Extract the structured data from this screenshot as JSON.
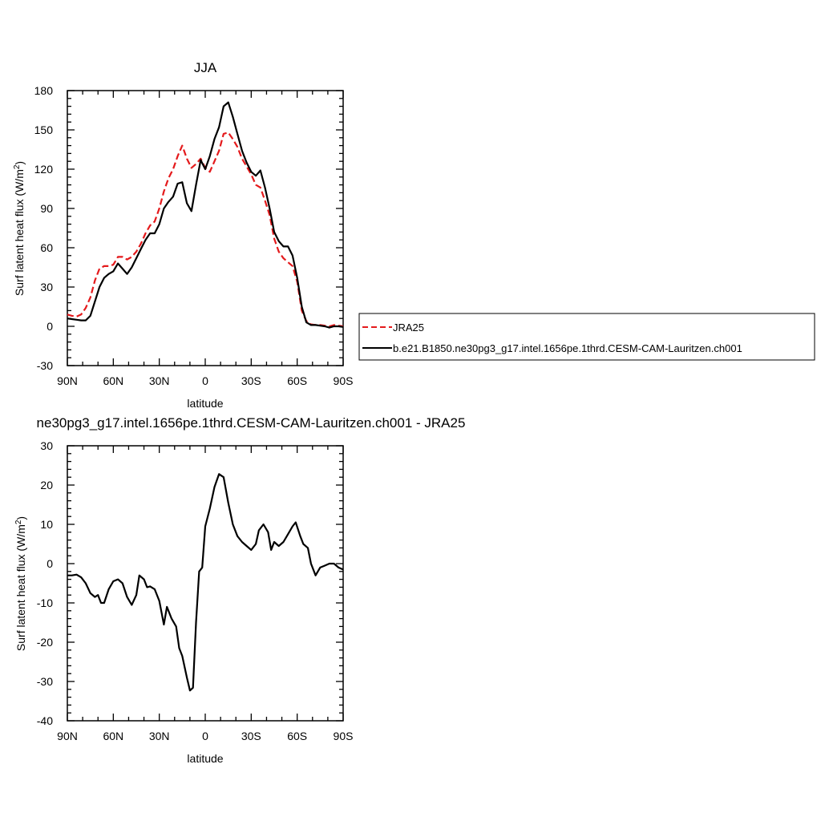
{
  "chart_data": [
    {
      "type": "line",
      "title": "JJA",
      "xlabel": "latitude",
      "ylabel": "Surf latent heat flux (W/m",
      "ylabel_sup": "2",
      "ylabel_end": ")",
      "xlim": [
        90,
        -90
      ],
      "ylim": [
        -30,
        180
      ],
      "xticks": [
        90,
        60,
        30,
        0,
        -30,
        -60,
        -90
      ],
      "xtick_labels": [
        "90N",
        "60N",
        "30N",
        "0",
        "30S",
        "60S",
        "90S"
      ],
      "yticks": [
        -30,
        0,
        30,
        60,
        90,
        120,
        150,
        180
      ],
      "ytick_labels": [
        "-30",
        "0",
        "30",
        "60",
        "90",
        "120",
        "150",
        "180"
      ],
      "legend_position": "right",
      "series": [
        {
          "name": "JRA25",
          "color": "#e41a1c",
          "dash": "dashed",
          "points": [
            [
              90,
              9
            ],
            [
              87,
              8
            ],
            [
              84,
              7.5
            ],
            [
              81,
              9
            ],
            [
              78,
              14
            ],
            [
              75,
              22
            ],
            [
              72,
              35
            ],
            [
              69,
              44
            ],
            [
              66,
              46
            ],
            [
              63,
              46
            ],
            [
              60,
              47
            ],
            [
              57,
              53
            ],
            [
              54,
              53
            ],
            [
              51,
              51
            ],
            [
              48,
              53
            ],
            [
              45,
              57
            ],
            [
              42,
              63
            ],
            [
              39,
              71
            ],
            [
              36,
              77
            ],
            [
              33,
              80
            ],
            [
              30,
              90
            ],
            [
              27,
              103
            ],
            [
              24,
              113
            ],
            [
              21,
              120
            ],
            [
              18,
              130
            ],
            [
              15,
              138
            ],
            [
              12,
              128
            ],
            [
              9,
              121
            ],
            [
              6,
              124
            ],
            [
              3,
              128
            ],
            [
              0,
              121
            ],
            [
              -3,
              118
            ],
            [
              -6,
              126
            ],
            [
              -9,
              134
            ],
            [
              -12,
              147
            ],
            [
              -15,
              148
            ],
            [
              -18,
              143
            ],
            [
              -21,
              137
            ],
            [
              -24,
              128
            ],
            [
              -27,
              122
            ],
            [
              -30,
              116
            ],
            [
              -33,
              108
            ],
            [
              -36,
              106
            ],
            [
              -39,
              96
            ],
            [
              -42,
              85
            ],
            [
              -45,
              67
            ],
            [
              -48,
              57
            ],
            [
              -51,
              52
            ],
            [
              -54,
              49
            ],
            [
              -57,
              46
            ],
            [
              -60,
              34
            ],
            [
              -63,
              12
            ],
            [
              -66,
              4
            ],
            [
              -69,
              1.5
            ],
            [
              -72,
              1
            ],
            [
              -75,
              1
            ],
            [
              -78,
              0.5
            ],
            [
              -81,
              0
            ],
            [
              -84,
              1
            ],
            [
              -87,
              0.5
            ],
            [
              -90,
              0
            ]
          ]
        },
        {
          "name": "b.e21.B1850.ne30pg3_g17.intel.1656pe.1thrd.CESM-CAM-Lauritzen.ch001",
          "color": "#000000",
          "dash": "solid",
          "points": [
            [
              90,
              6
            ],
            [
              87,
              5.5
            ],
            [
              84,
              5
            ],
            [
              81,
              4.5
            ],
            [
              78,
              4.5
            ],
            [
              75,
              8
            ],
            [
              72,
              19
            ],
            [
              69,
              30
            ],
            [
              66,
              37
            ],
            [
              63,
              40
            ],
            [
              60,
              42
            ],
            [
              57,
              48
            ],
            [
              54,
              44
            ],
            [
              51,
              40
            ],
            [
              48,
              45
            ],
            [
              45,
              52
            ],
            [
              42,
              59
            ],
            [
              39,
              66
            ],
            [
              36,
              71
            ],
            [
              33,
              71
            ],
            [
              30,
              78
            ],
            [
              27,
              90
            ],
            [
              24,
              95
            ],
            [
              21,
              99
            ],
            [
              18,
              109
            ],
            [
              15,
              110
            ],
            [
              12,
              94
            ],
            [
              9,
              88
            ],
            [
              6,
              108
            ],
            [
              3,
              127
            ],
            [
              0,
              120
            ],
            [
              -3,
              130
            ],
            [
              -6,
              143
            ],
            [
              -9,
              152
            ],
            [
              -12,
              168
            ],
            [
              -15,
              171
            ],
            [
              -18,
              160
            ],
            [
              -21,
              147
            ],
            [
              -24,
              134
            ],
            [
              -27,
              125
            ],
            [
              -30,
              118
            ],
            [
              -33,
              115
            ],
            [
              -36,
              119
            ],
            [
              -39,
              106
            ],
            [
              -42,
              90
            ],
            [
              -45,
              72
            ],
            [
              -48,
              65
            ],
            [
              -51,
              61
            ],
            [
              -54,
              61
            ],
            [
              -57,
              54
            ],
            [
              -60,
              37
            ],
            [
              -63,
              15
            ],
            [
              -66,
              3
            ],
            [
              -69,
              1
            ],
            [
              -72,
              1
            ],
            [
              -75,
              0.5
            ],
            [
              -78,
              0
            ],
            [
              -81,
              -1
            ],
            [
              -84,
              0
            ],
            [
              -87,
              0
            ],
            [
              -90,
              -0.5
            ]
          ]
        }
      ]
    },
    {
      "type": "line",
      "title": "ne30pg3_g17.intel.1656pe.1thrd.CESM-CAM-Lauritzen.ch001 - JRA25",
      "xlabel": "latitude",
      "ylabel": "Surf latent heat flux (W/m",
      "ylabel_sup": "2",
      "ylabel_end": ")",
      "xlim": [
        90,
        -90
      ],
      "ylim": [
        -40,
        30
      ],
      "xticks": [
        90,
        60,
        30,
        0,
        -30,
        -60,
        -90
      ],
      "xtick_labels": [
        "90N",
        "60N",
        "30N",
        "0",
        "30S",
        "60S",
        "90S"
      ],
      "yticks": [
        -40,
        -30,
        -20,
        -10,
        0,
        10,
        20,
        30
      ],
      "ytick_labels": [
        "-40",
        "-30",
        "-20",
        "-10",
        "0",
        "10",
        "20",
        "30"
      ],
      "series": [
        {
          "color": "#000000",
          "dash": "solid",
          "points": [
            [
              90,
              -3
            ],
            [
              87,
              -3
            ],
            [
              84,
              -2.8
            ],
            [
              81,
              -3.5
            ],
            [
              78,
              -5
            ],
            [
              75,
              -7.5
            ],
            [
              72,
              -8.5
            ],
            [
              70,
              -8
            ],
            [
              68,
              -10
            ],
            [
              66,
              -10
            ],
            [
              63,
              -6.5
            ],
            [
              60,
              -4.5
            ],
            [
              57,
              -4
            ],
            [
              54,
              -5
            ],
            [
              51,
              -8.5
            ],
            [
              48,
              -10.5
            ],
            [
              45,
              -8
            ],
            [
              43,
              -3
            ],
            [
              40,
              -4
            ],
            [
              38,
              -6
            ],
            [
              36,
              -5.8
            ],
            [
              33,
              -6.5
            ],
            [
              30,
              -9.5
            ],
            [
              27,
              -15.5
            ],
            [
              25,
              -11
            ],
            [
              22,
              -14
            ],
            [
              19,
              -16
            ],
            [
              17,
              -21.5
            ],
            [
              15,
              -23.5
            ],
            [
              12,
              -29
            ],
            [
              10,
              -32.3
            ],
            [
              8,
              -31.6
            ],
            [
              6,
              -15
            ],
            [
              4,
              -2
            ],
            [
              2,
              -1
            ],
            [
              0,
              9.5
            ],
            [
              -3,
              14
            ],
            [
              -6,
              19.5
            ],
            [
              -9,
              22.8
            ],
            [
              -12,
              22
            ],
            [
              -15,
              15.5
            ],
            [
              -18,
              10
            ],
            [
              -21,
              7
            ],
            [
              -24,
              5.5
            ],
            [
              -27,
              4.5
            ],
            [
              -30,
              3.5
            ],
            [
              -33,
              5
            ],
            [
              -35,
              8.5
            ],
            [
              -38,
              10
            ],
            [
              -41,
              8
            ],
            [
              -43,
              3.5
            ],
            [
              -45,
              5.5
            ],
            [
              -48,
              4.5
            ],
            [
              -51,
              5.5
            ],
            [
              -54,
              7.5
            ],
            [
              -57,
              9.5
            ],
            [
              -59,
              10.5
            ],
            [
              -62,
              7
            ],
            [
              -64,
              5
            ],
            [
              -67,
              4
            ],
            [
              -69,
              0
            ],
            [
              -72,
              -3
            ],
            [
              -75,
              -1
            ],
            [
              -78,
              -0.5
            ],
            [
              -81,
              0
            ],
            [
              -84,
              0
            ],
            [
              -87,
              -1
            ],
            [
              -90,
              -1.5
            ],
            [
              -93,
              -0.5
            ],
            [
              -96,
              0
            ]
          ]
        }
      ]
    }
  ]
}
